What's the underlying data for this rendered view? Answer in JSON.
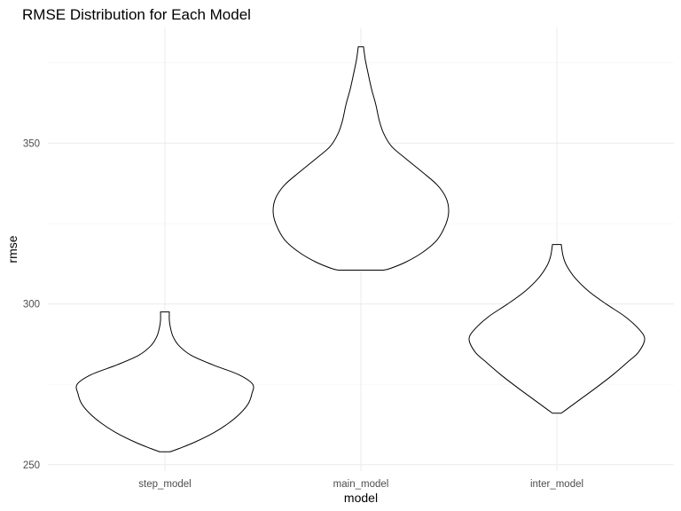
{
  "chart_data": {
    "type": "violin",
    "title": "RMSE Distribution for Each Model",
    "xlabel": "model",
    "ylabel": "rmse",
    "categories": [
      "step_model",
      "main_model",
      "inter_model"
    ],
    "ylim": [
      248,
      386
    ],
    "yticks": [
      250,
      300,
      350
    ],
    "grid": true,
    "fill_color": "#ffffff",
    "outline_color": "#000000",
    "series": [
      {
        "category": "step_model",
        "min": 254,
        "max": 297.5,
        "profile": [
          [
            254,
            0.06
          ],
          [
            255,
            0.16
          ],
          [
            257,
            0.34
          ],
          [
            260,
            0.56
          ],
          [
            263,
            0.73
          ],
          [
            266,
            0.86
          ],
          [
            269,
            0.95
          ],
          [
            272,
            0.99
          ],
          [
            275,
            1.0
          ],
          [
            278,
            0.84
          ],
          [
            281,
            0.55
          ],
          [
            284,
            0.3
          ],
          [
            287,
            0.16
          ],
          [
            290,
            0.09
          ],
          [
            293,
            0.06
          ],
          [
            295,
            0.05
          ],
          [
            297.5,
            0.05
          ]
        ]
      },
      {
        "category": "main_model",
        "min": 310.5,
        "max": 380,
        "profile": [
          [
            310.5,
            0.25
          ],
          [
            311,
            0.33
          ],
          [
            313,
            0.51
          ],
          [
            316,
            0.7
          ],
          [
            320,
            0.87
          ],
          [
            325,
            0.97
          ],
          [
            329,
            1.0
          ],
          [
            333,
            0.97
          ],
          [
            337,
            0.87
          ],
          [
            341,
            0.7
          ],
          [
            345,
            0.52
          ],
          [
            349,
            0.35
          ],
          [
            353,
            0.26
          ],
          [
            357,
            0.21
          ],
          [
            362,
            0.17
          ],
          [
            367,
            0.12
          ],
          [
            372,
            0.08
          ],
          [
            376,
            0.05
          ],
          [
            380,
            0.03
          ]
        ]
      },
      {
        "category": "inter_model",
        "min": 266,
        "max": 318.5,
        "profile": [
          [
            266,
            0.05
          ],
          [
            267,
            0.1
          ],
          [
            270,
            0.25
          ],
          [
            274,
            0.45
          ],
          [
            278,
            0.64
          ],
          [
            282,
            0.81
          ],
          [
            285,
            0.93
          ],
          [
            289,
            1.0
          ],
          [
            292,
            0.94
          ],
          [
            296,
            0.78
          ],
          [
            300,
            0.56
          ],
          [
            304,
            0.36
          ],
          [
            308,
            0.21
          ],
          [
            312,
            0.11
          ],
          [
            315,
            0.07
          ],
          [
            318.5,
            0.05
          ]
        ]
      }
    ]
  }
}
